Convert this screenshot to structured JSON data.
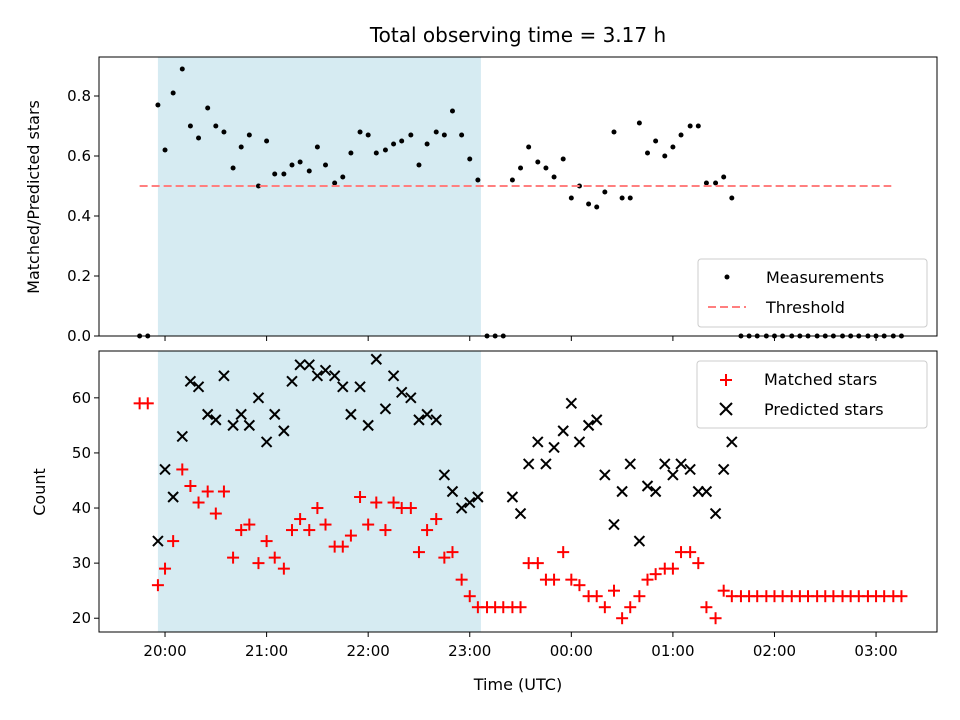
{
  "chart_data": {
    "title": "Total observing time = 3.17 h",
    "xlabel": "Time (UTC)",
    "x_tick_labels": [
      "20:00",
      "21:00",
      "22:00",
      "23:00",
      "00:00",
      "01:00",
      "02:00",
      "03:00"
    ],
    "x_tick_hours": [
      20,
      21,
      22,
      23,
      24,
      25,
      26,
      27
    ],
    "xlim_hours": [
      19.35,
      27.6
    ],
    "shaded_span_hours": [
      19.93,
      23.11
    ],
    "shade_color": "#add8e6",
    "subplots": [
      {
        "type": "scatter",
        "ylabel": "Matched/Predicted stars",
        "ylim": [
          0,
          0.93
        ],
        "y_ticks": [
          "0.0",
          "0.2",
          "0.4",
          "0.6",
          "0.8"
        ],
        "legend_position": "lower-right",
        "series": [
          {
            "name": "Measurements",
            "marker": "dot",
            "color": "#000000",
            "x": [
              19.75,
              19.83,
              19.93,
              20.0,
              20.08,
              20.17,
              20.25,
              20.33,
              20.42,
              20.5,
              20.58,
              20.67,
              20.75,
              20.83,
              20.92,
              21.0,
              21.08,
              21.17,
              21.25,
              21.33,
              21.42,
              21.5,
              21.58,
              21.67,
              21.75,
              21.83,
              21.92,
              22.0,
              22.08,
              22.17,
              22.25,
              22.33,
              22.42,
              22.5,
              22.58,
              22.67,
              22.75,
              22.83,
              22.92,
              23.0,
              23.08,
              23.17,
              23.25,
              23.33,
              23.42,
              23.5,
              23.58,
              23.67,
              23.75,
              23.83,
              23.92,
              24.0,
              24.08,
              24.17,
              24.25,
              24.33,
              24.42,
              24.5,
              24.58,
              24.67,
              24.75,
              24.83,
              24.92,
              25.0,
              25.08,
              25.17,
              25.25,
              25.33,
              25.42,
              25.5,
              25.58,
              25.67,
              25.75,
              25.83,
              25.92,
              26.0,
              26.08,
              26.17,
              26.25,
              26.33,
              26.42,
              26.5,
              26.58,
              26.67,
              26.75,
              26.83,
              26.92,
              27.0,
              27.08,
              27.17,
              27.25
            ],
            "y": [
              0.0,
              0.0,
              0.77,
              0.62,
              0.81,
              0.89,
              0.7,
              0.66,
              0.76,
              0.7,
              0.68,
              0.56,
              0.63,
              0.67,
              0.5,
              0.65,
              0.54,
              0.54,
              0.57,
              0.58,
              0.55,
              0.63,
              0.57,
              0.51,
              0.53,
              0.61,
              0.68,
              0.67,
              0.61,
              0.62,
              0.64,
              0.65,
              0.67,
              0.57,
              0.64,
              0.68,
              0.67,
              0.75,
              0.67,
              0.59,
              0.52,
              0.0,
              0.0,
              0.0,
              0.52,
              0.56,
              0.63,
              0.58,
              0.56,
              0.53,
              0.59,
              0.46,
              0.5,
              0.44,
              0.43,
              0.48,
              0.68,
              0.46,
              0.46,
              0.71,
              0.61,
              0.65,
              0.6,
              0.63,
              0.67,
              0.7,
              0.7,
              0.51,
              0.51,
              0.53,
              0.46,
              0.0,
              0.0,
              0.0,
              0.0,
              0.0,
              0.0,
              0.0,
              0.0,
              0.0,
              0.0,
              0.0,
              0.0,
              0.0,
              0.0,
              0.0,
              0.0,
              0.0,
              0.0,
              0.0,
              0.0
            ]
          },
          {
            "name": "Threshold",
            "type": "line",
            "style": "dashed",
            "color": "#ff7f7f",
            "x": [
              19.75,
              27.15
            ],
            "y": [
              0.5,
              0.5
            ]
          }
        ]
      },
      {
        "type": "scatter",
        "ylabel": "Count",
        "ylim": [
          17.5,
          68.5
        ],
        "y_ticks": [
          "20",
          "30",
          "40",
          "50",
          "60"
        ],
        "legend_position": "upper-right",
        "series": [
          {
            "name": "Matched stars",
            "marker": "plus",
            "color": "#ff0000",
            "x": [
              19.75,
              19.83,
              19.93,
              20.0,
              20.08,
              20.17,
              20.25,
              20.33,
              20.42,
              20.5,
              20.58,
              20.67,
              20.75,
              20.83,
              20.92,
              21.0,
              21.08,
              21.17,
              21.25,
              21.33,
              21.42,
              21.5,
              21.58,
              21.67,
              21.75,
              21.83,
              21.92,
              22.0,
              22.08,
              22.17,
              22.25,
              22.33,
              22.42,
              22.5,
              22.58,
              22.67,
              22.75,
              22.83,
              22.92,
              23.0,
              23.08,
              23.17,
              23.25,
              23.33,
              23.42,
              23.5,
              23.58,
              23.67,
              23.75,
              23.83,
              23.92,
              24.0,
              24.08,
              24.17,
              24.25,
              24.33,
              24.42,
              24.5,
              24.58,
              24.67,
              24.75,
              24.83,
              24.92,
              25.0,
              25.08,
              25.17,
              25.25,
              25.33,
              25.42,
              25.5,
              25.58,
              25.67,
              25.75,
              25.83,
              25.92,
              26.0,
              26.08,
              26.17,
              26.25,
              26.33,
              26.42,
              26.5,
              26.58,
              26.67,
              26.75,
              26.83,
              26.92,
              27.0,
              27.08,
              27.17,
              27.25
            ],
            "y": [
              59,
              59,
              26,
              29,
              34,
              47,
              44,
              41,
              43,
              39,
              43,
              31,
              36,
              37,
              30,
              34,
              31,
              29,
              36,
              38,
              36,
              40,
              37,
              33,
              33,
              35,
              42,
              37,
              41,
              36,
              41,
              40,
              40,
              32,
              36,
              38,
              31,
              32,
              27,
              24,
              22,
              22,
              22,
              22,
              22,
              22,
              30,
              30,
              27,
              27,
              32,
              27,
              26,
              24,
              24,
              22,
              25,
              20,
              22,
              24,
              27,
              28,
              29,
              29,
              32,
              32,
              30,
              22,
              20,
              25,
              24,
              24,
              24,
              24,
              24,
              24,
              24,
              24,
              24,
              24,
              24,
              24,
              24,
              24,
              24,
              24,
              24,
              24,
              24,
              24,
              24
            ]
          },
          {
            "name": "Predicted stars",
            "marker": "x",
            "color": "#000000",
            "x": [
              19.93,
              20.0,
              20.08,
              20.17,
              20.25,
              20.33,
              20.42,
              20.5,
              20.58,
              20.67,
              20.75,
              20.83,
              20.92,
              21.0,
              21.08,
              21.17,
              21.25,
              21.33,
              21.42,
              21.5,
              21.58,
              21.67,
              21.75,
              21.83,
              21.92,
              22.0,
              22.08,
              22.17,
              22.25,
              22.33,
              22.42,
              22.5,
              22.58,
              22.67,
              22.75,
              22.83,
              22.92,
              23.0,
              23.08,
              23.42,
              23.5,
              23.58,
              23.67,
              23.75,
              23.83,
              23.92,
              24.0,
              24.08,
              24.17,
              24.25,
              24.33,
              24.42,
              24.5,
              24.58,
              24.67,
              24.75,
              24.83,
              24.92,
              25.0,
              25.08,
              25.17,
              25.25,
              25.33,
              25.42,
              25.5,
              25.58
            ],
            "y": [
              34,
              47,
              42,
              53,
              63,
              62,
              57,
              56,
              64,
              55,
              57,
              55,
              60,
              52,
              57,
              54,
              63,
              66,
              66,
              64,
              65,
              64,
              62,
              57,
              62,
              55,
              67,
              58,
              64,
              61,
              60,
              56,
              57,
              56,
              46,
              43,
              40,
              41,
              42,
              42,
              39,
              48,
              52,
              48,
              51,
              54,
              59,
              52,
              55,
              56,
              46,
              37,
              43,
              48,
              34,
              44,
              43,
              48,
              46,
              48,
              47,
              43,
              43,
              39,
              47,
              52
            ]
          }
        ]
      }
    ]
  }
}
